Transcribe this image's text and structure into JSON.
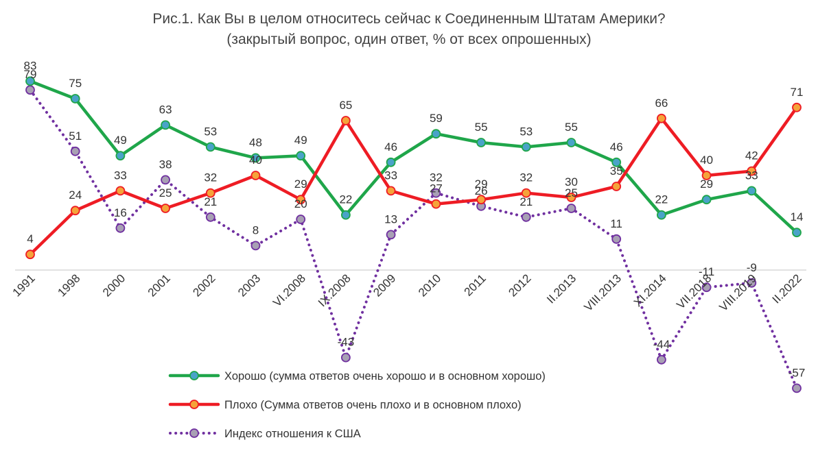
{
  "chart_data": {
    "type": "line",
    "title": "Рис.1. Как Вы в целом относитесь сейчас к Соединенным Штатам Америки?",
    "subtitle": "(закрытый вопрос, один ответ, % от всех опрошенных)",
    "categories": [
      "1991",
      "1998",
      "2000",
      "2001",
      "2002",
      "2003",
      "VI.2008",
      "IX.2008",
      "2009",
      "2010",
      "2011",
      "2012",
      "II.2013",
      "VIII.2013",
      "XI.2014",
      "VII.2018",
      "VIII.2019",
      "II.2022"
    ],
    "series": [
      {
        "name": "Хорошо (сумма ответов очень хорошо и в основном хорошо)",
        "color": "#1fa64a",
        "marker_color": "#4aa3c8",
        "dashed": false,
        "values": [
          83,
          75,
          49,
          63,
          53,
          48,
          49,
          22,
          46,
          59,
          55,
          53,
          55,
          46,
          22,
          29,
          33,
          14
        ],
        "labels": [
          "83",
          "75",
          "49",
          "63",
          "53",
          "48",
          "49",
          "22",
          "46",
          "59",
          "55",
          "53",
          "55",
          "46",
          "22",
          "29",
          "33",
          "14"
        ]
      },
      {
        "name": "Плохо (Сумма ответов очень плохо и в основном плохо)",
        "color": "#ee1c24",
        "marker_color": "#f5a33a",
        "dashed": false,
        "values": [
          4,
          24,
          33,
          25,
          32,
          40,
          29,
          65,
          33,
          27,
          29,
          32,
          30,
          35,
          66,
          40,
          42,
          71
        ],
        "labels": [
          "4",
          "24",
          "33",
          "25",
          "32",
          "40",
          "29",
          "65",
          "33",
          "27",
          "29",
          "32",
          "30",
          "35",
          "66",
          "40",
          "42",
          "71"
        ]
      },
      {
        "name": "Индекс отношения к США",
        "color": "#7030a0",
        "marker_color": "#a8a0b4",
        "dashed": true,
        "values": [
          79,
          51,
          16,
          38,
          21,
          8,
          20,
          -43,
          13,
          32,
          26,
          21,
          25,
          11,
          -44,
          -11,
          -9,
          -57
        ],
        "labels": [
          "79",
          "51",
          "16",
          "38",
          "21",
          "8",
          "20",
          "-43",
          "13",
          "32",
          "26",
          "21",
          "25",
          "11",
          "-44",
          "-11",
          "-9",
          "-57"
        ]
      }
    ],
    "zero_line": true,
    "legend_position": "bottom"
  }
}
